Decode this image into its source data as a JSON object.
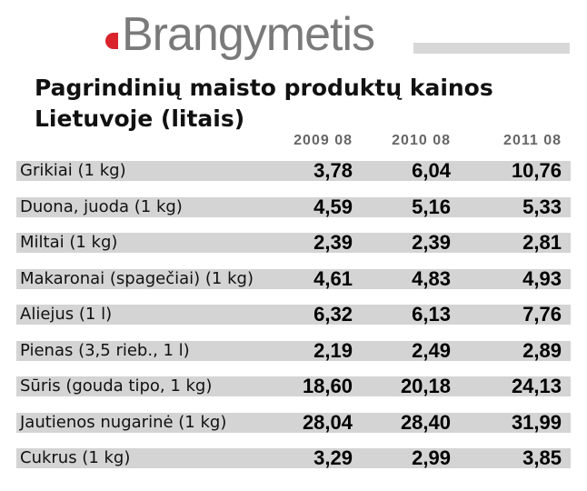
{
  "header": {
    "brand": "Brangymetis",
    "title_lines": [
      "Pagrindinių maisto produktų kainos",
      "Lietuvoje (litais)"
    ]
  },
  "table": {
    "columns": [
      "2009 08",
      "2010 08",
      "2011 08"
    ],
    "rows": [
      [
        "Grikiai (1 kg)",
        "3,78",
        "6,04",
        "10,76"
      ],
      [
        "Duona, juoda (1 kg)",
        "4,59",
        "5,16",
        "5,33"
      ],
      [
        "Miltai (1 kg)",
        "2,39",
        "2,39",
        "2,81"
      ],
      [
        "Makaronai (spagečiai) (1 kg)",
        "4,61",
        "4,83",
        "4,93"
      ],
      [
        "Aliejus (1 l)",
        "6,32",
        "6,13",
        "7,76"
      ],
      [
        "Pienas (3,5 rieb., 1 l)",
        "2,19",
        "2,49",
        "2,89"
      ],
      [
        "Sūris (gouda tipo, 1 kg)",
        "18,60",
        "20,18",
        "24,13"
      ],
      [
        "Jautienos nugarinė (1 kg)",
        "28,04",
        "28,40",
        "31,99"
      ],
      [
        "Cukrus (1 kg)",
        "3,29",
        "2,99",
        "3,85"
      ]
    ]
  }
}
